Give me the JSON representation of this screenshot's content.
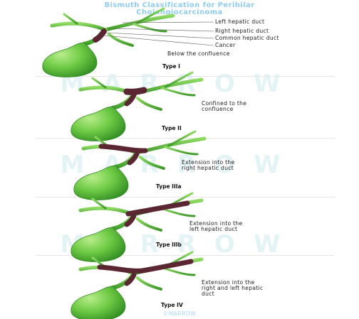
{
  "title_line1": "Bismuth Classification for Perihilar",
  "title_line2": "Cholangiocarcinoma",
  "legend_labels": [
    "Left hepatic duct",
    "Right hepatic duct",
    "Common hepatic duct",
    "Cancer"
  ],
  "panels": [
    {
      "type_label": "Type I",
      "description": [
        "Below the confluence"
      ]
    },
    {
      "type_label": "Type II",
      "description": [
        "Confined to the",
        "confluence"
      ]
    },
    {
      "type_label": "Type IIIa",
      "description": [
        "Extension into the",
        "right hepatic duct"
      ]
    },
    {
      "type_label": "Type IIIb",
      "description": [
        "Extension into the",
        "left hepatic duct"
      ]
    },
    {
      "type_label": "Type IV",
      "description": [
        "Extension into the",
        "right and left hepatic",
        "duct"
      ]
    }
  ],
  "watermark": "MARROW",
  "copyright": "©MARROW",
  "colors": {
    "duct_green": "#6fcb45",
    "duct_dark_green": "#3f9a2a",
    "tumor": "#5a2632",
    "title": "#8fcdf0",
    "watermark": "#e3f3f6"
  }
}
